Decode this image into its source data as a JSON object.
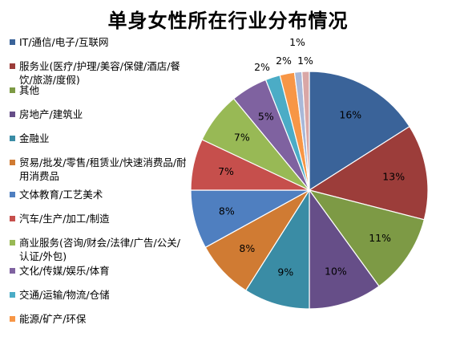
{
  "chart_data": {
    "type": "pie",
    "title": "单身女性所在行业分布情况",
    "legend_position": "left",
    "categories": [
      "IT/通信/电子/互联网",
      "服务业(医疗/护理/美容/保健/酒店/餐饮/旅游/度假)",
      "其他",
      "房地产/建筑业",
      "金融业",
      "贸易/批发/零售/租赁业/快速消费品/耐用消费品",
      "文体教育/工艺美术",
      "汽车/生产/加工/制造",
      "商业服务(咨询/财会/法律/广告/公关/认证/外包)",
      "文化/传媒/娱乐/体育",
      "交通/运输/物流/仓储",
      "能源/矿产/环保",
      "",
      ""
    ],
    "values": [
      16,
      13,
      11,
      10,
      9,
      8,
      8,
      7,
      7,
      5,
      2,
      2,
      1,
      1
    ],
    "labels": [
      "16%",
      "13%",
      "11%",
      "10%",
      "9%",
      "8%",
      "8%",
      "7%",
      "7%",
      "5%",
      "2%",
      "2%",
      "1%",
      "1%"
    ],
    "colors": [
      "#3A6399",
      "#9C3D3A",
      "#7D9A45",
      "#664E88",
      "#3A8CA5",
      "#D07B33",
      "#4F7FC0",
      "#C64F4C",
      "#98B955",
      "#7F62A0",
      "#4BACC6",
      "#F79646",
      "#A8B8D8",
      "#D9A7A6"
    ]
  }
}
